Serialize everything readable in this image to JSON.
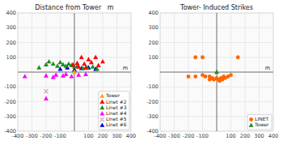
{
  "chart_data": [
    {
      "type": "scatter",
      "title": "Distance from Tower   m",
      "xlim": [
        -400,
        400
      ],
      "ylim": [
        -400,
        400
      ],
      "xticks": [
        -400,
        -300,
        -200,
        -100,
        {
          "value": 0,
          "label": null
        },
        100,
        200,
        300,
        400
      ],
      "yticks": [
        -400,
        -300,
        -200,
        -100,
        {
          "value": 0,
          "label": null
        },
        100,
        200,
        300,
        400
      ],
      "grid": true,
      "legend": "lower right",
      "annotations": [
        {
          "text": "m",
          "x": 360,
          "y": 12
        }
      ],
      "series": [
        {
          "name": "Tower",
          "color": "#FFA500",
          "marker": "triangle",
          "x": [
            0
          ],
          "values": [
            0
          ]
        },
        {
          "name": "Linet #2",
          "color": "#FF0000",
          "marker": "triangle",
          "x": [
            50,
            100,
            150,
            200,
            -10,
            20,
            70,
            120,
            30,
            80,
            170
          ],
          "values": [
            100,
            85,
            100,
            70,
            50,
            60,
            55,
            65,
            35,
            30,
            45
          ]
        },
        {
          "name": "Linet #3",
          "color": "#228B22",
          "marker": "triangle",
          "x": [
            -250,
            -200,
            -180,
            -150,
            -120,
            -100,
            -80,
            -60,
            -40,
            -20,
            0,
            20,
            60,
            90,
            130,
            160
          ],
          "values": [
            30,
            50,
            70,
            55,
            40,
            65,
            50,
            40,
            55,
            45,
            35,
            40,
            25,
            30,
            35,
            20
          ]
        },
        {
          "name": "Linet #4",
          "color": "#FF00FF",
          "marker": "triangle",
          "x": [
            -350,
            -200,
            -150,
            -130,
            -80,
            -60,
            -20,
            30,
            80,
            -200
          ],
          "values": [
            -30,
            -25,
            -35,
            -20,
            -25,
            -15,
            -30,
            -20,
            -15,
            -180
          ]
        },
        {
          "name": "Linet #5",
          "color": "#CC99CC",
          "marker": "x",
          "x": [
            -200
          ],
          "values": [
            -130
          ]
        },
        {
          "name": "Linet #6",
          "color": "#0000CD",
          "marker": "triangle",
          "x": [
            -100,
            -50,
            0,
            50,
            100,
            150
          ],
          "values": [
            20,
            30,
            15,
            25,
            30,
            20
          ]
        }
      ]
    },
    {
      "type": "scatter",
      "title": "Tower- Induced Strikes",
      "xlim": [
        -400,
        400
      ],
      "ylim": [
        -400,
        400
      ],
      "xticks": [
        -400,
        -300,
        -200,
        -100,
        {
          "value": 0,
          "label": null
        },
        100,
        200,
        300,
        400
      ],
      "yticks": [
        -400,
        -300,
        -200,
        -100,
        {
          "value": 0,
          "label": null
        },
        100,
        200,
        300,
        400
      ],
      "grid": true,
      "legend": "lower right",
      "annotations": [
        {
          "text": "m",
          "x": 360,
          "y": 12
        }
      ],
      "series": [
        {
          "name": "LINET",
          "color": "#FF6600",
          "marker": "circle",
          "x": [
            -200,
            -150,
            -100,
            -150,
            -100,
            -80,
            -50,
            -50,
            -30,
            -20,
            0,
            10,
            20,
            30,
            40,
            50,
            60,
            80,
            100,
            150
          ],
          "values": [
            -30,
            100,
            100,
            -30,
            -20,
            -30,
            -30,
            -50,
            -40,
            -50,
            -40,
            -50,
            -60,
            -40,
            -50,
            -30,
            -40,
            -30,
            -20,
            100
          ]
        },
        {
          "name": "Tower",
          "color": "#228B22",
          "marker": "triangle",
          "x": [
            0
          ],
          "values": [
            0
          ]
        }
      ]
    }
  ]
}
